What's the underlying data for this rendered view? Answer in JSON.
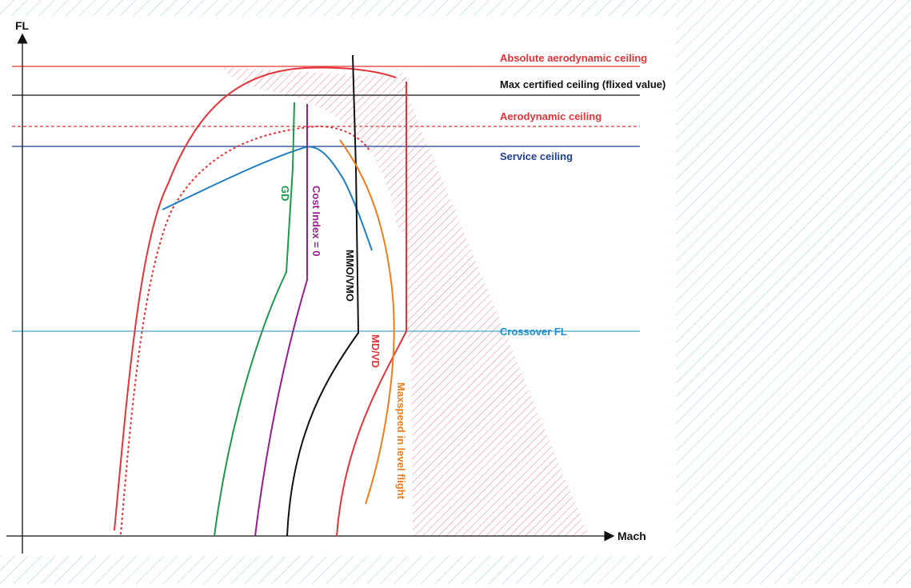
{
  "diagram": {
    "axes": {
      "y_label": "FL",
      "x_label": "Mach"
    },
    "horizontal_lines": {
      "absolute_aero_ceiling": {
        "label": "Absolute aerodynamic ceiling",
        "color": "#e63338"
      },
      "max_certified_ceiling": {
        "label": "Max certified ceiling (flixed value)",
        "color": "#111111"
      },
      "aero_ceiling": {
        "label": "Aerodynamic ceiling",
        "color": "#e63338"
      },
      "service_ceiling": {
        "label": "Service ceiling",
        "color": "#1f3f8f"
      },
      "crossover_fl": {
        "label": "Crossover FL",
        "color": "#1f8fc8"
      }
    },
    "curves": {
      "gd": {
        "label": "GD",
        "color": "#1a9a4a"
      },
      "cost_index": {
        "label": "Cost Index = 0",
        "color": "#9b1c8e"
      },
      "mmo_vmo": {
        "label": "MMO/VMO",
        "color": "#111111"
      },
      "md_vd": {
        "label": "MD/VD",
        "color": "#e63338"
      },
      "maxspeed_level": {
        "label": "Maxspeed in level flight",
        "color": "#ef7d1a"
      }
    },
    "colors": {
      "background_hatch": "#a9d3ec",
      "forbidden_hatch": "#e63338"
    }
  }
}
